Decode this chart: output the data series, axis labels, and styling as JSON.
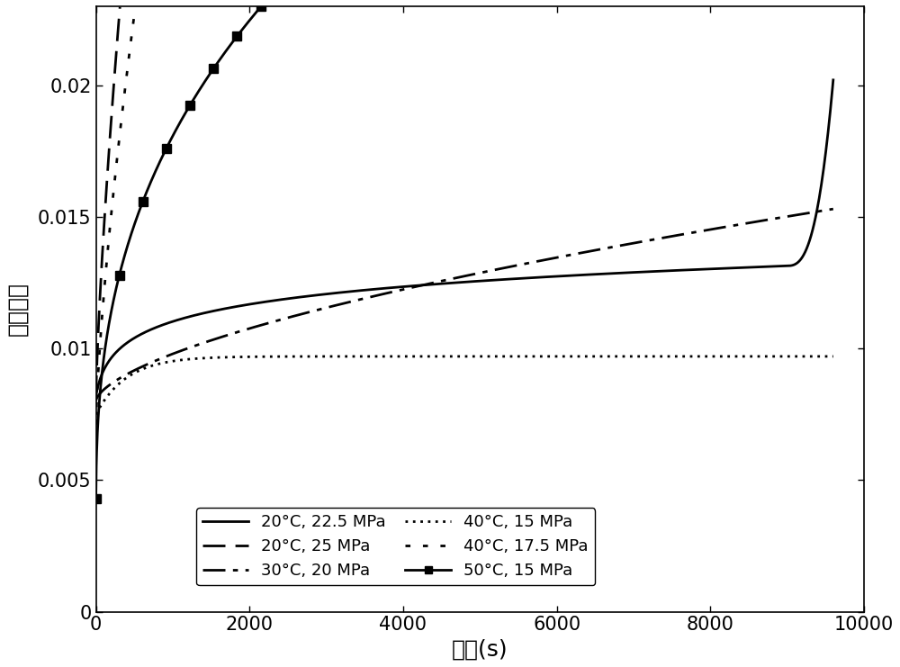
{
  "title": "",
  "xlabel": "时间(s)",
  "ylabel": "蚀变应变",
  "xlim": [
    0,
    10000
  ],
  "ylim": [
    0,
    0.023
  ],
  "yticks": [
    0,
    0.005,
    0.01,
    0.015,
    0.02
  ],
  "xticks": [
    0,
    2000,
    4000,
    6000,
    8000,
    10000
  ],
  "legend_entries": [
    "20°C, 22.5 MPa",
    "20°C, 25 MPa",
    "30°C, 20 MPa",
    "40°C, 15 MPa",
    "40°C, 17.5 MPa",
    "50°C, 15 MPa"
  ],
  "line_color": "#000000",
  "background": "#ffffff",
  "fontsize_axis": 18,
  "fontsize_tick": 15,
  "fontsize_legend": 13
}
